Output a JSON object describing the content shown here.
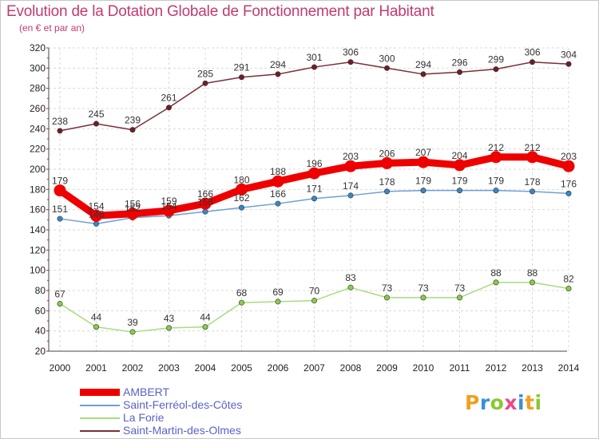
{
  "title": "Evolution de la Dotation Globale de Fonctionnement par Habitant",
  "subtitle": "(en € et par an)",
  "logo": {
    "p": "P",
    "r": "r",
    "o": "o",
    "x": "x",
    "i": "i",
    "t": "t",
    "i2": "i"
  },
  "colors": {
    "title": "#c23a72",
    "legend_text": "#5a63c8"
  },
  "chart_data": {
    "type": "line",
    "title": "Evolution de la Dotation Globale de Fonctionnement par Habitant",
    "ylabel": "(en € et par an)",
    "xlabel": "",
    "ylim": [
      20,
      320
    ],
    "ytick_step": 20,
    "grid": true,
    "legend_position": "bottom-left",
    "categories": [
      "2000",
      "2001",
      "2002",
      "2003",
      "2004",
      "2005",
      "2006",
      "2007",
      "2008",
      "2009",
      "2010",
      "2011",
      "2012",
      "2013",
      "2014"
    ],
    "series": [
      {
        "name": "AMBERT",
        "color": "#ee0000",
        "marker_color": "#ee0000",
        "emphasis": true,
        "values": [
          179,
          154,
          156,
          159,
          166,
          180,
          188,
          196,
          203,
          206,
          207,
          204,
          212,
          212,
          203
        ]
      },
      {
        "name": "Saint-Ferréol-des-Côtes",
        "color": "#6ea0d4",
        "marker_color": "#3a86c8",
        "emphasis": false,
        "values": [
          151,
          146,
          152,
          154,
          158,
          162,
          166,
          171,
          174,
          178,
          179,
          179,
          179,
          178,
          176
        ]
      },
      {
        "name": "La Forie",
        "color": "#a8db7e",
        "marker_color": "#8acb48",
        "emphasis": false,
        "values": [
          67,
          44,
          39,
          43,
          44,
          68,
          69,
          70,
          83,
          73,
          73,
          73,
          88,
          88,
          82
        ]
      },
      {
        "name": "Saint-Martin-des-Olmes",
        "color": "#7a2e36",
        "marker_color": "#6e1e28",
        "emphasis": false,
        "values": [
          238,
          245,
          239,
          261,
          285,
          291,
          294,
          301,
          306,
          300,
          294,
          296,
          299,
          306,
          304
        ]
      }
    ]
  }
}
